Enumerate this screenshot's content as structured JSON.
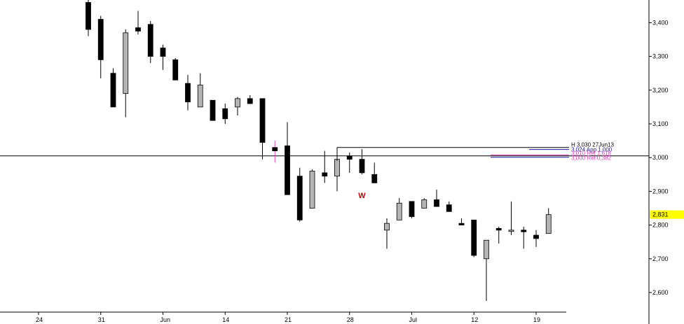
{
  "chart_data": {
    "type": "candlestick",
    "colors": {
      "up": "#b4b4b4",
      "down": "#000000",
      "highlight": "#ffff00",
      "pink": "#e040c0",
      "blue": "#1a1aa8",
      "marker": "#c00000"
    },
    "ylim": [
      2560,
      3460
    ],
    "y_ticks": [
      "2,600",
      "2,700",
      "2,800",
      "2,900",
      "3,000",
      "3,100",
      "3,200",
      "3,300",
      "3,400"
    ],
    "y_tick_values": [
      2600,
      2700,
      2800,
      2900,
      3000,
      3100,
      3200,
      3300,
      3400
    ],
    "x_ticks": [
      {
        "label": "24",
        "index": -4
      },
      {
        "label": "31",
        "index": 1
      },
      {
        "label": "Jun",
        "index": 6
      },
      {
        "label": "14",
        "index": 11
      },
      {
        "label": "21",
        "index": 16
      },
      {
        "label": "28",
        "index": 21
      },
      {
        "label": "Jul",
        "index": 26
      },
      {
        "label": "12",
        "index": 31
      },
      {
        "label": "19",
        "index": 36
      }
    ],
    "last_price_label": "2,831",
    "last_price": 2831,
    "reference_line": 3005,
    "annotations": [
      {
        "text": "H 3,030 27Jun13",
        "value": 3030,
        "color": "#000000"
      },
      {
        "text": "3,024 App 1,000",
        "value": 3024,
        "color": "#1a1aa8"
      },
      {
        "text": "3,010 Ret 1,618",
        "value": 3008,
        "color": "#e040c0"
      },
      {
        "text": "3,000 Ret 0,382",
        "value": 3001,
        "color": "#e040c0"
      }
    ],
    "wave_label": {
      "text": "W",
      "index": 22
    },
    "candles": [
      {
        "o": 3460,
        "h": 3480,
        "l": 3360,
        "c": 3380
      },
      {
        "o": 3410,
        "h": 3420,
        "l": 3235,
        "c": 3290
      },
      {
        "o": 3250,
        "h": 3265,
        "l": 3150,
        "c": 3150
      },
      {
        "o": 3190,
        "h": 3380,
        "l": 3120,
        "c": 3370
      },
      {
        "o": 3385,
        "h": 3435,
        "l": 3365,
        "c": 3375
      },
      {
        "o": 3395,
        "h": 3405,
        "l": 3280,
        "c": 3300
      },
      {
        "o": 3325,
        "h": 3335,
        "l": 3260,
        "c": 3300
      },
      {
        "o": 3290,
        "h": 3295,
        "l": 3230,
        "c": 3230
      },
      {
        "o": 3220,
        "h": 3245,
        "l": 3140,
        "c": 3165
      },
      {
        "o": 3150,
        "h": 3250,
        "l": 3150,
        "c": 3215
      },
      {
        "o": 3170,
        "h": 3170,
        "l": 3110,
        "c": 3110
      },
      {
        "o": 3145,
        "h": 3160,
        "l": 3100,
        "c": 3115
      },
      {
        "o": 3150,
        "h": 3180,
        "l": 3125,
        "c": 3175
      },
      {
        "o": 3175,
        "h": 3185,
        "l": 3160,
        "c": 3160
      },
      {
        "o": 3175,
        "h": 3175,
        "l": 2995,
        "c": 3045
      },
      {
        "o": 3030,
        "h": 3050,
        "l": 2985,
        "c": 3020,
        "pink": true
      },
      {
        "o": 3035,
        "h": 3105,
        "l": 2890,
        "c": 2890
      },
      {
        "o": 2945,
        "h": 2970,
        "l": 2810,
        "c": 2815
      },
      {
        "o": 2850,
        "h": 2965,
        "l": 2850,
        "c": 2960
      },
      {
        "o": 2955,
        "h": 3020,
        "l": 2925,
        "c": 2945
      },
      {
        "o": 2945,
        "h": 3030,
        "l": 2900,
        "c": 2995
      },
      {
        "o": 3005,
        "h": 3015,
        "l": 2955,
        "c": 2995
      },
      {
        "o": 2995,
        "h": 3025,
        "l": 2950,
        "c": 2955
      },
      {
        "o": 2950,
        "h": 2985,
        "l": 2925,
        "c": 2925
      },
      {
        "o": 2785,
        "h": 2820,
        "l": 2730,
        "c": 2805
      },
      {
        "o": 2815,
        "h": 2880,
        "l": 2815,
        "c": 2865
      },
      {
        "o": 2870,
        "h": 2870,
        "l": 2820,
        "c": 2825
      },
      {
        "o": 2850,
        "h": 2880,
        "l": 2850,
        "c": 2875
      },
      {
        "o": 2875,
        "h": 2905,
        "l": 2855,
        "c": 2855
      },
      {
        "o": 2860,
        "h": 2870,
        "l": 2840,
        "c": 2840
      },
      {
        "o": 2805,
        "h": 2820,
        "l": 2800,
        "c": 2800
      },
      {
        "o": 2815,
        "h": 2815,
        "l": 2705,
        "c": 2710
      },
      {
        "o": 2700,
        "h": 2755,
        "l": 2575,
        "c": 2755
      },
      {
        "o": 2790,
        "h": 2795,
        "l": 2745,
        "c": 2785
      },
      {
        "o": 2785,
        "h": 2870,
        "l": 2770,
        "c": 2785
      },
      {
        "o": 2785,
        "h": 2795,
        "l": 2730,
        "c": 2780
      },
      {
        "o": 2770,
        "h": 2785,
        "l": 2735,
        "c": 2760
      },
      {
        "o": 2775,
        "h": 2850,
        "l": 2775,
        "c": 2831
      }
    ]
  }
}
